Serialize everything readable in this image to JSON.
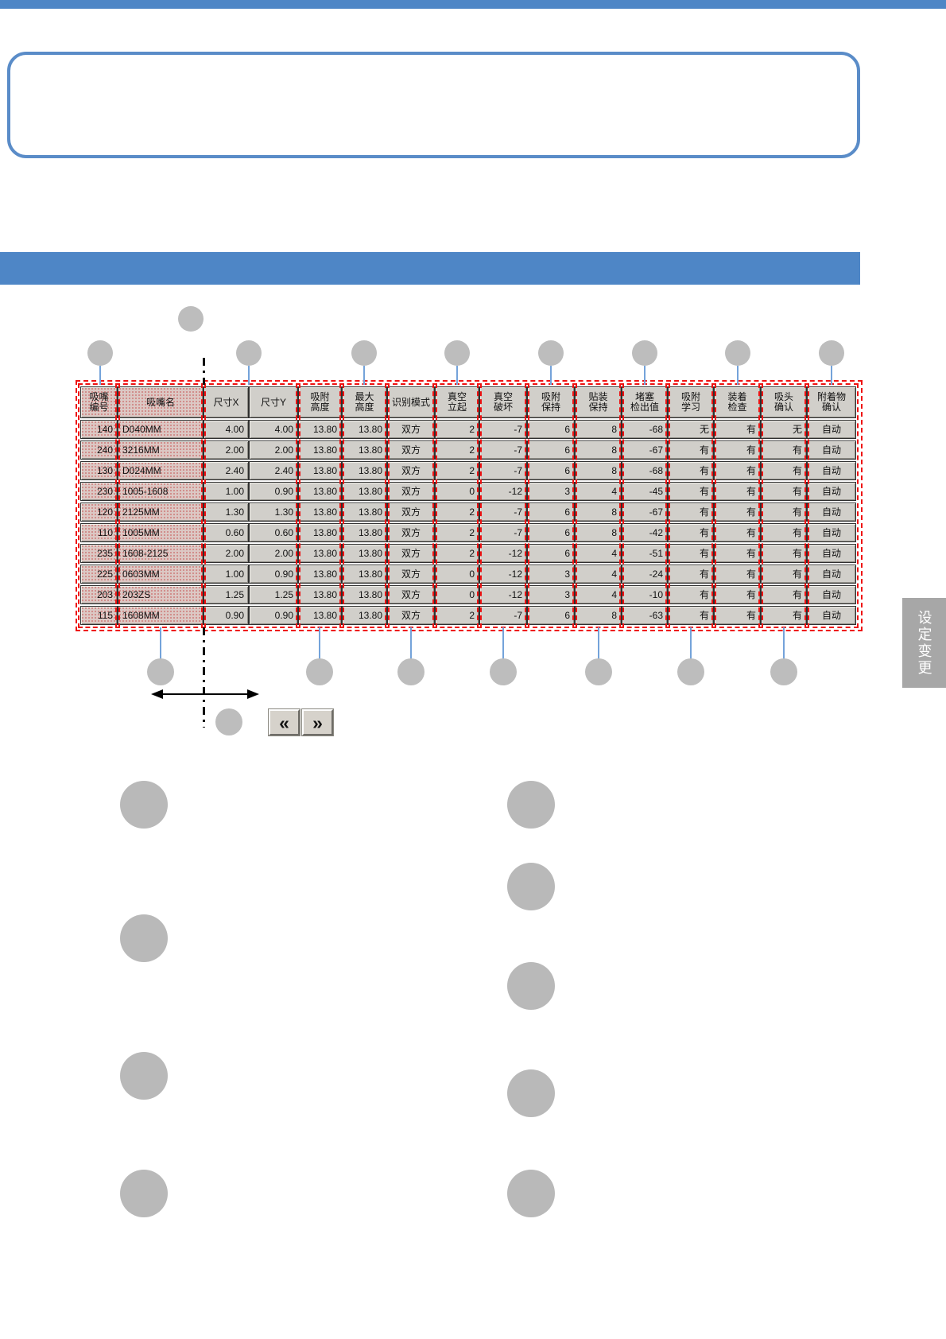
{
  "side_tab": {
    "label": "设定变更"
  },
  "pager": {
    "prev": "«",
    "next": "»"
  },
  "table": {
    "headers": [
      "吸嘴\n编号",
      "吸嘴名",
      "尺寸X",
      "尺寸Y",
      "吸附\n高度",
      "最大\n高度",
      "识别模式",
      "真空\n立起",
      "真空\n破坏",
      "吸附\n保持",
      "贴装\n保持",
      "堵塞\n检出值",
      "吸附\n学习",
      "装着\n检查",
      "吸头\n确认",
      "附着物\n确认"
    ],
    "rows": [
      [
        "140",
        "D040MM",
        "4.00",
        "4.00",
        "13.80",
        "13.80",
        "双方",
        "2",
        "-7",
        "6",
        "8",
        "-68",
        "无",
        "有",
        "无",
        "自动"
      ],
      [
        "240",
        "3216MM",
        "2.00",
        "2.00",
        "13.80",
        "13.80",
        "双方",
        "2",
        "-7",
        "6",
        "8",
        "-67",
        "有",
        "有",
        "有",
        "自动"
      ],
      [
        "130",
        "D024MM",
        "2.40",
        "2.40",
        "13.80",
        "13.80",
        "双方",
        "2",
        "-7",
        "6",
        "8",
        "-68",
        "有",
        "有",
        "有",
        "自动"
      ],
      [
        "230",
        "1005-1608",
        "1.00",
        "0.90",
        "13.80",
        "13.80",
        "双方",
        "0",
        "-12",
        "3",
        "4",
        "-45",
        "有",
        "有",
        "有",
        "自动"
      ],
      [
        "120",
        "2125MM",
        "1.30",
        "1.30",
        "13.80",
        "13.80",
        "双方",
        "2",
        "-7",
        "6",
        "8",
        "-67",
        "有",
        "有",
        "有",
        "自动"
      ],
      [
        "110",
        "1005MM",
        "0.60",
        "0.60",
        "13.80",
        "13.80",
        "双方",
        "2",
        "-7",
        "6",
        "8",
        "-42",
        "有",
        "有",
        "有",
        "自动"
      ],
      [
        "235",
        "1608-2125",
        "2.00",
        "2.00",
        "13.80",
        "13.80",
        "双方",
        "2",
        "-12",
        "6",
        "4",
        "-51",
        "有",
        "有",
        "有",
        "自动"
      ],
      [
        "225",
        "0603MM",
        "1.00",
        "0.90",
        "13.80",
        "13.80",
        "双方",
        "0",
        "-12",
        "3",
        "4",
        "-24",
        "有",
        "有",
        "有",
        "自动"
      ],
      [
        "203",
        "203ZS",
        "1.25",
        "1.25",
        "13.80",
        "13.80",
        "双方",
        "0",
        "-12",
        "3",
        "4",
        "-10",
        "有",
        "有",
        "有",
        "自动"
      ],
      [
        "115",
        "1608MM",
        "0.90",
        "0.90",
        "13.80",
        "13.80",
        "双方",
        "2",
        "-7",
        "6",
        "8",
        "-63",
        "有",
        "有",
        "有",
        "自动"
      ]
    ]
  }
}
